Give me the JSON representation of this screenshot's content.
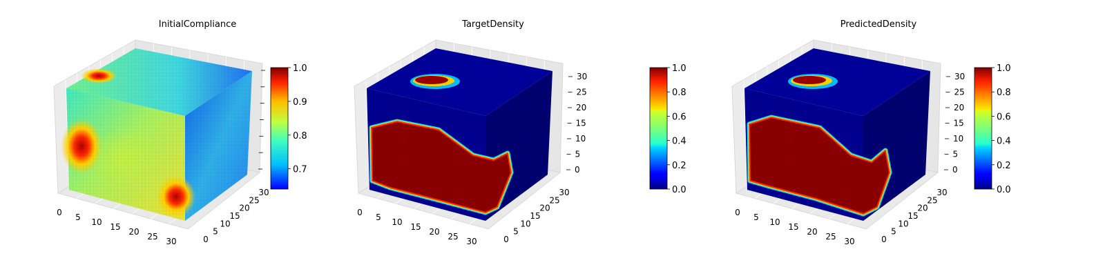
{
  "chart_data": [
    {
      "type": "heatmap",
      "subtype": "3d-voxel-cube",
      "title": "InitialCompliance",
      "colormap": "jet",
      "axes": {
        "x": {
          "ticks": [
            0,
            5,
            10,
            15,
            20,
            25,
            30
          ]
        },
        "y": {
          "ticks": [
            0,
            5,
            10,
            15,
            20,
            25,
            30
          ]
        },
        "z": {
          "ticks": []
        }
      },
      "colorbar": {
        "range": [
          0.64,
          1.0
        ],
        "ticks": [
          0.7,
          0.8,
          0.9,
          1.0
        ],
        "tick_labels": [
          "0.7",
          "0.8",
          "0.9",
          "1.0"
        ]
      },
      "grid": true
    },
    {
      "type": "heatmap",
      "subtype": "3d-voxel-cube",
      "title": "TargetDensity",
      "colormap": "jet",
      "axes": {
        "x": {
          "ticks": [
            0,
            5,
            10,
            15,
            20,
            25,
            30
          ]
        },
        "y": {
          "ticks": [
            0,
            5,
            10,
            15,
            20,
            25,
            30
          ]
        },
        "z": {
          "ticks": [
            0,
            5,
            10,
            15,
            20,
            25,
            30
          ]
        }
      },
      "colorbar": {
        "range": [
          0.0,
          1.0
        ],
        "ticks": [
          0.0,
          0.2,
          0.4,
          0.6,
          0.8,
          1.0
        ],
        "tick_labels": [
          "0.0",
          "0.2",
          "0.4",
          "0.6",
          "0.8",
          "1.0"
        ]
      },
      "grid": true
    },
    {
      "type": "heatmap",
      "subtype": "3d-voxel-cube",
      "title": "PredictedDensity",
      "colormap": "jet",
      "axes": {
        "x": {
          "ticks": [
            0,
            5,
            10,
            15,
            20,
            25,
            30
          ]
        },
        "y": {
          "ticks": [
            0,
            5,
            10,
            15,
            20,
            25,
            30
          ]
        },
        "z": {
          "ticks": [
            0,
            5,
            10,
            15,
            20,
            25,
            30
          ]
        }
      },
      "colorbar": {
        "range": [
          0.0,
          1.0
        ],
        "ticks": [
          0.0,
          0.2,
          0.4,
          0.6,
          0.8,
          1.0
        ],
        "tick_labels": [
          "0.0",
          "0.2",
          "0.4",
          "0.6",
          "0.8",
          "1.0"
        ]
      },
      "grid": true
    }
  ]
}
